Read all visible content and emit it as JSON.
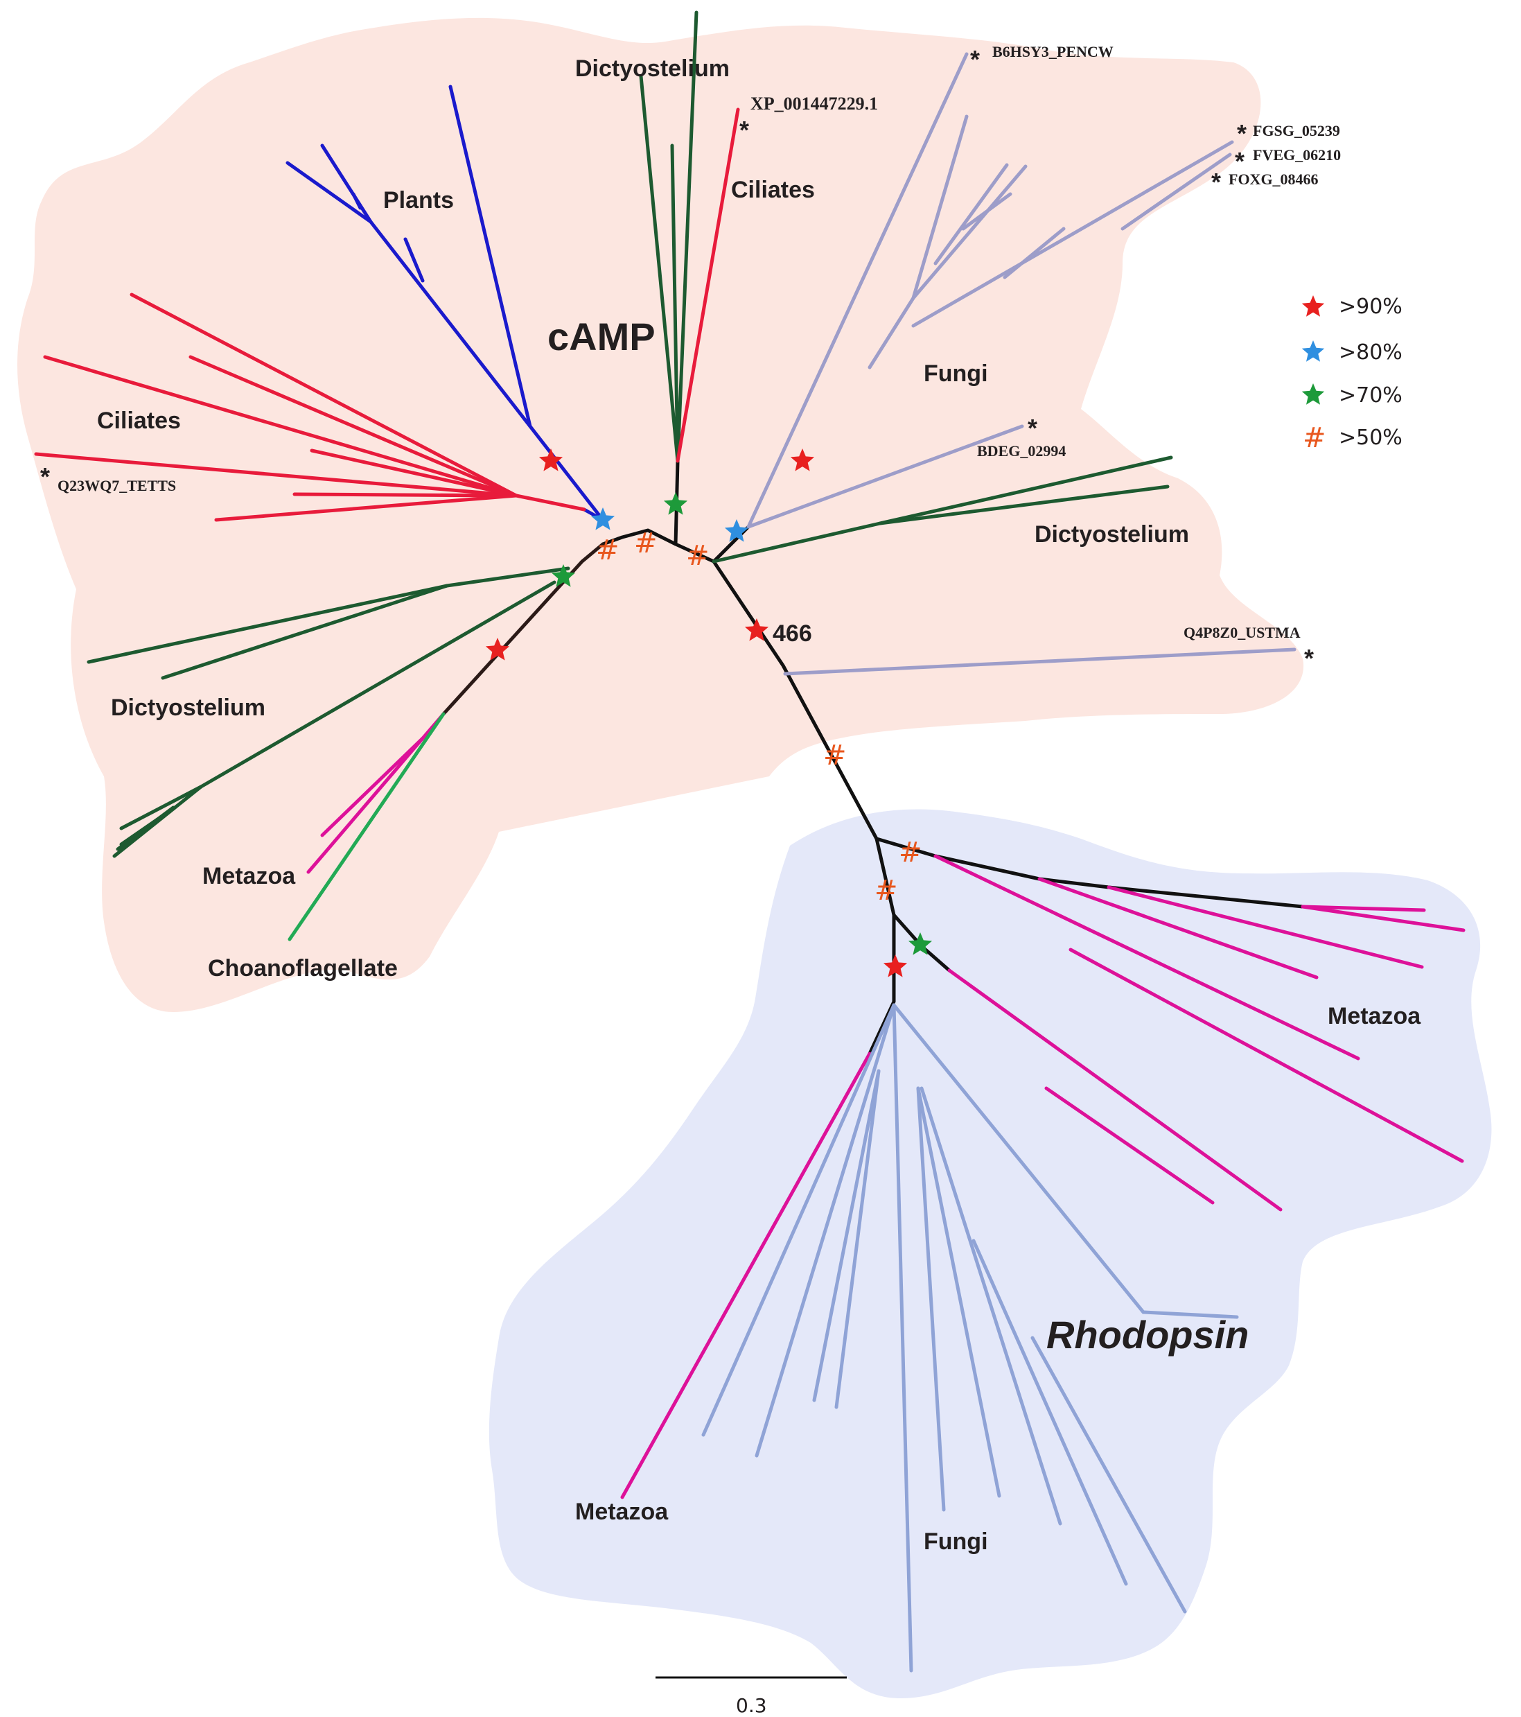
{
  "groups": {
    "camp_label": "cAMP",
    "rhodopsin_label": "Rhodopsin"
  },
  "clade_labels": {
    "plants": "Plants",
    "dictyostelium_top": "Dictyostelium",
    "ciliates_top": "Ciliates",
    "ciliates_left": "Ciliates",
    "fungi_camp": "Fungi",
    "dictyostelium_right": "Dictyostelium",
    "dictyostelium_left": "Dictyostelium",
    "metazoa_camp": "Metazoa",
    "choanoflagellate": "Choanoflagellate",
    "metazoa_rhodopsin_right": "Metazoa",
    "metazoa_rhodopsin_bottom": "Metazoa",
    "fungi_rhodopsin": "Fungi"
  },
  "taxa": {
    "xp": "XP_001447229.1",
    "b6hsy3": "B6HSY3_PENCW",
    "fgsg": "FGSG_05239",
    "fveg": "FVEG_06210",
    "foxg": "FOXG_08466",
    "bdeg": "BDEG_02994",
    "q23wq7": "Q23WQ7_TETTS",
    "q4p8z0": "Q4P8Z0_USTMA"
  },
  "asterisk": "*",
  "node_value": "466",
  "hash_symbol": "#",
  "legend": [
    {
      "symbol": "star",
      "color": "#e8201f",
      "label": ">90%"
    },
    {
      "symbol": "star",
      "color": "#2f8fe0",
      "label": ">80%"
    },
    {
      "symbol": "star",
      "color": "#1d9a3a",
      "label": ">70%"
    },
    {
      "symbol": "hash",
      "color": "#e8571e",
      "label": ">50%"
    }
  ],
  "scale_bar": {
    "label": "0.3"
  },
  "colors": {
    "camp_region": "#fce6e0",
    "rhodopsin_region": "#e4e8f9",
    "backbone": "#111111",
    "ciliates": "#e81b3b",
    "plants": "#1a1acc",
    "dictyostelium": "#1d5a30",
    "fungi": "#9d9dc9",
    "fungi_rhodopsin": "#8fa3d6",
    "metazoa": "#dd1199",
    "choanoflagellate": "#22aa55"
  }
}
